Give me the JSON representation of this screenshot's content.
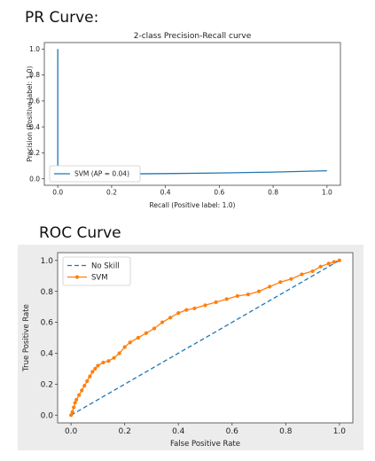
{
  "headings": {
    "pr": "PR Curve:",
    "roc": "ROC Curve"
  },
  "chart_data": [
    {
      "type": "line",
      "title": "2-class Precision-Recall curve",
      "xlabel": "Recall (Positive label: 1.0)",
      "ylabel": "Precision (Positive label: 1.0)",
      "xlim": [
        -0.05,
        1.05
      ],
      "ylim": [
        -0.05,
        1.05
      ],
      "xticks": [
        "0.0",
        "0.2",
        "0.4",
        "0.6",
        "0.8",
        "1.0"
      ],
      "yticks": [
        "0.0",
        "0.2",
        "0.4",
        "0.6",
        "0.8",
        "1.0"
      ],
      "grid": false,
      "legend_position": "lower-left",
      "series": [
        {
          "name": "SVM (AP = 0.04)",
          "color": "#1f77b4",
          "x": [
            0.0,
            0.0,
            0.002,
            0.02,
            0.1,
            0.2,
            0.4,
            0.6,
            0.8,
            1.0
          ],
          "y": [
            1.0,
            0.06,
            0.04,
            0.035,
            0.035,
            0.037,
            0.04,
            0.045,
            0.052,
            0.062
          ]
        }
      ]
    },
    {
      "type": "line",
      "title": "",
      "xlabel": "False Positive Rate",
      "ylabel": "True Positive Rate",
      "xlim": [
        -0.05,
        1.05
      ],
      "ylim": [
        -0.05,
        1.05
      ],
      "xticks": [
        "0.0",
        "0.2",
        "0.4",
        "0.6",
        "0.8",
        "1.0"
      ],
      "yticks": [
        "0.0",
        "0.2",
        "0.4",
        "0.6",
        "0.8",
        "1.0"
      ],
      "grid": false,
      "legend_position": "upper-left",
      "series": [
        {
          "name": "No Skill",
          "color": "#1f77b4",
          "style": "dashed",
          "x": [
            0,
            1
          ],
          "y": [
            0,
            1
          ]
        },
        {
          "name": "SVM",
          "color": "#ff7f0e",
          "style": "marker-line",
          "x": [
            0,
            0.005,
            0.01,
            0.015,
            0.02,
            0.03,
            0.04,
            0.05,
            0.06,
            0.07,
            0.08,
            0.09,
            0.1,
            0.12,
            0.14,
            0.16,
            0.18,
            0.2,
            0.22,
            0.25,
            0.28,
            0.31,
            0.34,
            0.37,
            0.4,
            0.43,
            0.46,
            0.5,
            0.54,
            0.58,
            0.62,
            0.66,
            0.7,
            0.74,
            0.78,
            0.82,
            0.86,
            0.9,
            0.93,
            0.96,
            0.98,
            1.0
          ],
          "y": [
            0,
            0.02,
            0.05,
            0.08,
            0.1,
            0.13,
            0.16,
            0.19,
            0.22,
            0.25,
            0.28,
            0.3,
            0.32,
            0.34,
            0.35,
            0.37,
            0.4,
            0.44,
            0.47,
            0.5,
            0.53,
            0.56,
            0.6,
            0.63,
            0.66,
            0.68,
            0.69,
            0.71,
            0.73,
            0.75,
            0.77,
            0.78,
            0.8,
            0.83,
            0.86,
            0.88,
            0.91,
            0.93,
            0.96,
            0.98,
            0.99,
            1.0
          ]
        }
      ]
    }
  ]
}
